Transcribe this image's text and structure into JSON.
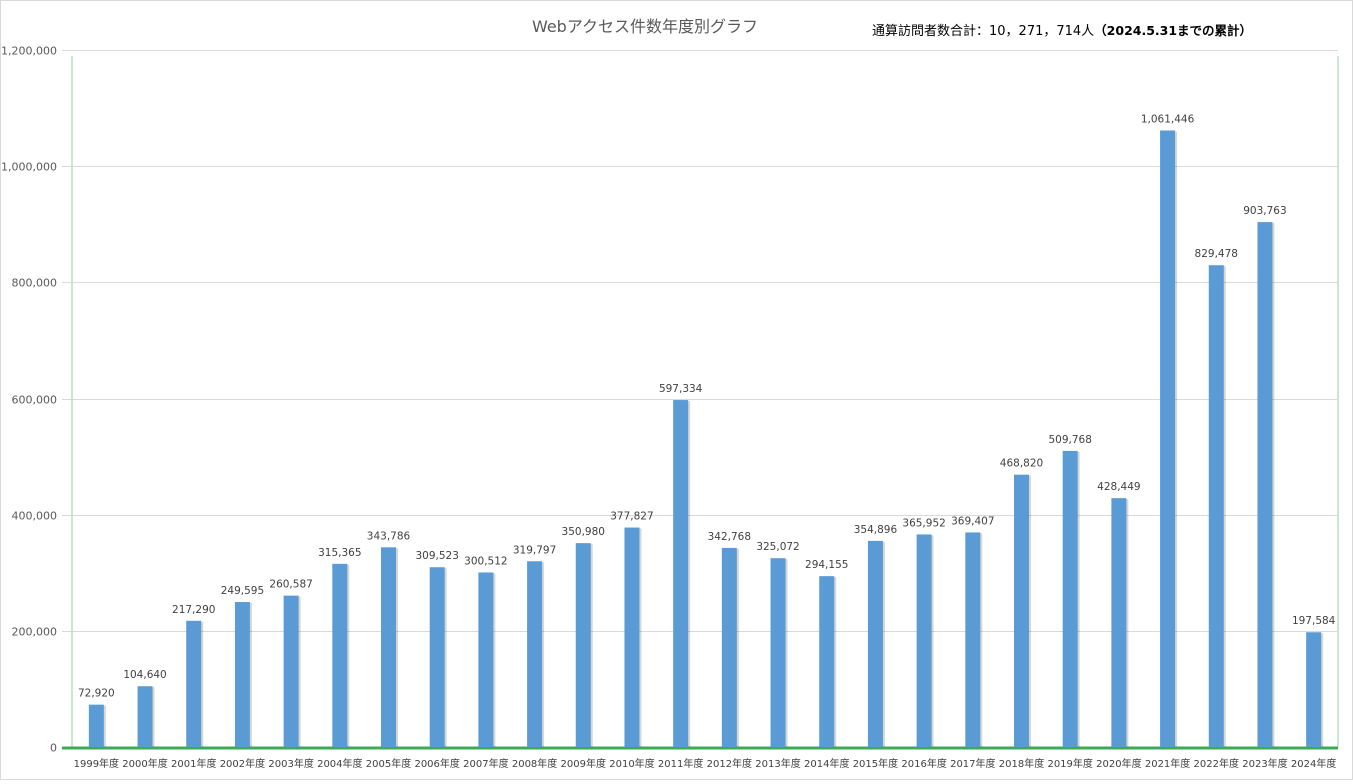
{
  "chart_data": {
    "type": "bar",
    "title": "Webアクセス件数年度別グラフ",
    "annotations": {
      "total": "通算訪問者数合計：10，271，714人",
      "note": "（2024.5.31までの累計）"
    },
    "categories": [
      "1999年度",
      "2000年度",
      "2001年度",
      "2002年度",
      "2003年度",
      "2004年度",
      "2005年度",
      "2006年度",
      "2007年度",
      "2008年度",
      "2009年度",
      "2010年度",
      "2011年度",
      "2012年度",
      "2013年度",
      "2014年度",
      "2015年度",
      "2016年度",
      "2017年度",
      "2018年度",
      "2019年度",
      "2020年度",
      "2021年度",
      "2022年度",
      "2023年度",
      "2024年度"
    ],
    "values": [
      72920,
      104640,
      217290,
      249595,
      260587,
      315365,
      343786,
      309523,
      300512,
      319797,
      350980,
      377827,
      597334,
      342768,
      325072,
      294155,
      354896,
      365952,
      369407,
      468820,
      509768,
      428449,
      1061446,
      829478,
      903763,
      197584
    ],
    "data_labels": [
      "72,920",
      "104,640",
      "217,290",
      "249,595",
      "260,587",
      "315,365",
      "343,786",
      "309,523",
      "300,512",
      "319,797",
      "350,980",
      "377,827",
      "597,334",
      "342,768",
      "325,072",
      "294,155",
      "354,896",
      "365,952",
      "369,407",
      "468,820",
      "509,768",
      "428,449",
      "1,061,446",
      "829,478",
      "903,763",
      "197,584"
    ],
    "ylim": [
      0,
      1200000
    ],
    "yticks": [
      0,
      200000,
      400000,
      600000,
      800000,
      1000000,
      1200000
    ],
    "ytick_labels": [
      "0",
      "200,000",
      "400,000",
      "600,000",
      "800,000",
      "1,000,000",
      "1,200,000"
    ],
    "grid": true,
    "legend": "none",
    "colors": {
      "bar": "#5b9bd5",
      "grid": "#d9d9d9",
      "plot_border": "#b6e2bd",
      "axis_line": "#3daa55",
      "frame": "#d9d9d9"
    }
  }
}
